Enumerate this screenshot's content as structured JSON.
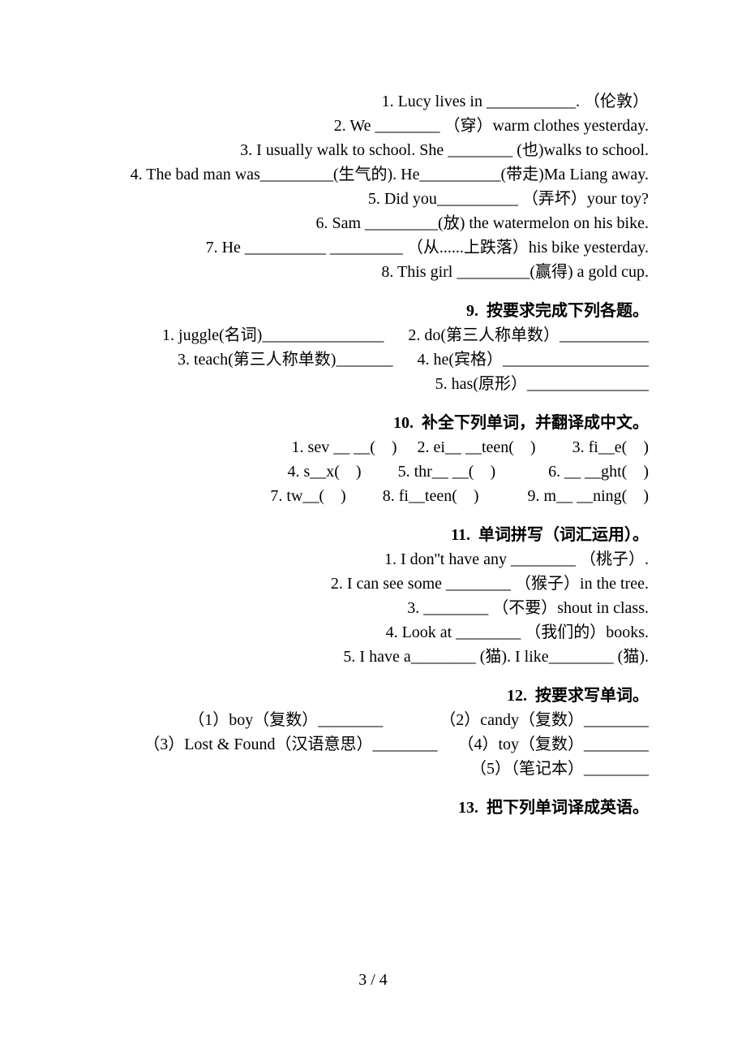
{
  "section8": {
    "lines": [
      "1. Lucy lives in ___________. （伦敦）",
      "2. We ________ （穿）warm clothes yesterday.",
      "3. I usually walk to school. She ________ (也)walks to school.",
      "4. The bad man was_________(生气的). He__________(带走)Ma Liang away.",
      "5. Did you__________ （弄坏）your toy?",
      "6. Sam _________(放) the watermelon on his bike.",
      "7. He __________ _________ （从......上跌落）his bike yesterday.",
      "8. This girl _________(赢得) a gold cup."
    ]
  },
  "section9": {
    "title": "9.  按要求完成下列各题。",
    "lines": [
      "1. juggle(名词)_______________      2. do(第三人称单数）___________",
      "3. teach(第三人称单数)_______      4. he(宾格）__________________",
      "5. has(原形）_______________"
    ]
  },
  "section10": {
    "title": "10.  补全下列单词，并翻译成中文。",
    "lines": [
      "1. sev __ __(    )     2. ei__ __teen(    )         3. fi__e(    )",
      "4. s__x(    )         5. thr__ __(    )             6. __ __ght(    )",
      "7. tw__(    )         8. fi__teen(    )            9. m__ __ning(    )"
    ]
  },
  "section11": {
    "title": "11.  单词拼写（词汇运用）。",
    "lines": [
      "1. I don''t have any ________ （桃子）.",
      "2. I can see some ________ （猴子）in the tree.",
      "3. ________ （不要）shout in class.",
      "4. Look at ________ （我们的）books.",
      "5. I have a________ (猫). I like________ (猫)."
    ]
  },
  "section12": {
    "title": "12.  按要求写单词。",
    "lines": [
      "（1）boy（复数）________              （2）candy（复数）________",
      "（3）Lost & Found（汉语意思）________     （4）toy（复数）________",
      "（5）（笔记本）________"
    ]
  },
  "section13": {
    "title": "13.  把下列单词译成英语。"
  },
  "pageNumber": "3 / 4"
}
